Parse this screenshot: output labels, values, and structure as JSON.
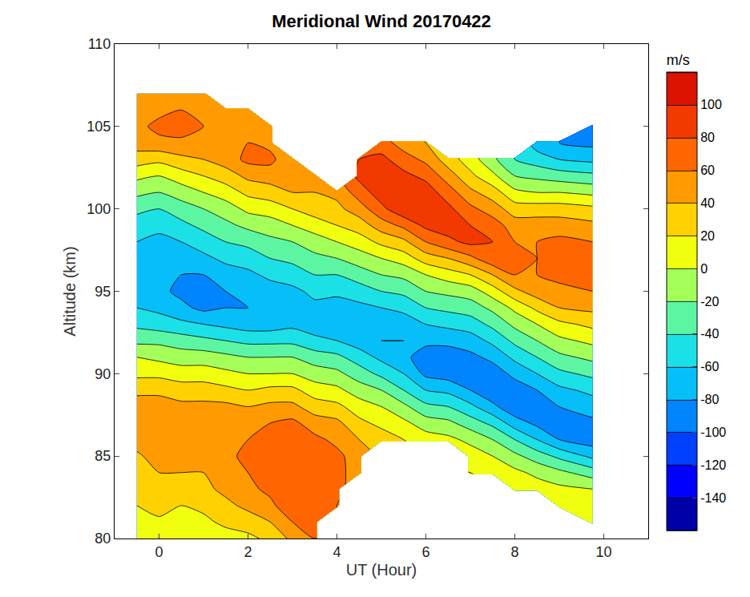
{
  "chart_data": {
    "type": "contour",
    "title": "Meridional Wind 20170422",
    "x_label": "UT (Hour)",
    "y_label": "Altitude (km)",
    "xlim": [
      -1,
      11
    ],
    "xticks": [
      0,
      2,
      4,
      6,
      8,
      10
    ],
    "ylim": [
      80,
      110
    ],
    "yticks": [
      80,
      85,
      90,
      95,
      100,
      105,
      110
    ],
    "colorbar": {
      "title": "m/s",
      "range": [
        -160,
        120
      ],
      "step": 20,
      "ticks": [
        -140,
        -120,
        -100,
        -80,
        -60,
        -40,
        -20,
        0,
        20,
        40,
        60,
        80,
        100
      ]
    },
    "x": [
      -0.5,
      0,
      0.5,
      1,
      1.5,
      2,
      2.5,
      3,
      3.5,
      4,
      4.5,
      5,
      5.5,
      6,
      6.5,
      7,
      7.5,
      8,
      8.5,
      9,
      9.75
    ],
    "y": [
      80,
      81,
      82,
      83,
      84,
      85,
      86,
      87,
      88,
      89,
      90,
      91,
      92,
      93,
      94,
      95,
      96,
      97,
      98,
      99,
      100,
      101,
      102,
      103,
      104,
      105,
      106,
      107
    ],
    "z": [
      [
        0,
        5,
        0,
        5,
        10,
        15,
        25,
        45,
        60,
        null,
        null,
        null,
        null,
        null,
        null,
        null,
        null,
        null,
        null,
        null,
        null
      ],
      [
        10,
        15,
        10,
        15,
        25,
        30,
        40,
        60,
        70,
        null,
        null,
        null,
        null,
        null,
        null,
        null,
        null,
        null,
        null,
        null,
        15
      ],
      [
        20,
        30,
        20,
        25,
        35,
        45,
        55,
        75,
        75,
        60,
        null,
        null,
        null,
        null,
        null,
        null,
        null,
        null,
        null,
        20,
        10
      ],
      [
        25,
        35,
        30,
        35,
        45,
        55,
        65,
        75,
        75,
        65,
        null,
        null,
        null,
        null,
        null,
        null,
        null,
        20,
        10,
        5,
        0
      ],
      [
        30,
        40,
        40,
        40,
        55,
        60,
        70,
        70,
        70,
        70,
        45,
        null,
        null,
        null,
        null,
        20,
        15,
        5,
        -5,
        -15,
        -30
      ],
      [
        38,
        45,
        50,
        45,
        55,
        65,
        70,
        70,
        70,
        65,
        50,
        null,
        null,
        null,
        null,
        10,
        0,
        -15,
        -30,
        -45,
        -65
      ],
      [
        45,
        55,
        55,
        50,
        60,
        60,
        65,
        75,
        65,
        55,
        40,
        30,
        20,
        10,
        5,
        -5,
        -20,
        -40,
        -60,
        -80,
        -90
      ],
      [
        55,
        60,
        55,
        50,
        55,
        55,
        60,
        65,
        50,
        45,
        25,
        15,
        5,
        -10,
        -15,
        -30,
        -45,
        -70,
        -85,
        -90,
        -85
      ],
      [
        50,
        50,
        45,
        45,
        45,
        40,
        45,
        45,
        30,
        25,
        10,
        0,
        -15,
        -35,
        -40,
        -55,
        -75,
        -95,
        -90,
        -80,
        -70
      ],
      [
        35,
        35,
        30,
        30,
        25,
        20,
        25,
        25,
        10,
        5,
        -10,
        -20,
        -40,
        -60,
        -65,
        -80,
        -95,
        -90,
        -80,
        -65,
        -55
      ],
      [
        15,
        15,
        10,
        10,
        5,
        0,
        0,
        0,
        -10,
        -15,
        -30,
        -45,
        -60,
        -85,
        -90,
        -95,
        -90,
        -75,
        -60,
        -45,
        -35
      ],
      [
        0,
        -5,
        -10,
        -10,
        -15,
        -20,
        -20,
        -20,
        -30,
        -35,
        -50,
        -65,
        -75,
        -90,
        -90,
        -85,
        -75,
        -55,
        -40,
        -25,
        -15
      ],
      [
        -25,
        -25,
        -30,
        -35,
        -40,
        -45,
        -45,
        -45,
        -55,
        -60,
        -70,
        -80,
        -80,
        -75,
        -75,
        -70,
        -55,
        -35,
        -20,
        -5,
        5
      ],
      [
        -45,
        -50,
        -55,
        -60,
        -65,
        -70,
        -70,
        -65,
        -70,
        -75,
        -75,
        -75,
        -70,
        -60,
        -55,
        -50,
        -35,
        -15,
        0,
        15,
        25
      ],
      [
        -60,
        -65,
        -75,
        -85,
        -80,
        -80,
        -75,
        -70,
        -65,
        -70,
        -65,
        -60,
        -55,
        -40,
        -35,
        -30,
        -15,
        5,
        25,
        40,
        45
      ],
      [
        -75,
        -75,
        -85,
        -90,
        -80,
        -75,
        -70,
        -65,
        -55,
        -55,
        -50,
        -40,
        -35,
        -20,
        -15,
        -10,
        10,
        35,
        50,
        55,
        60
      ],
      [
        -75,
        -75,
        -80,
        -80,
        -70,
        -65,
        -55,
        -50,
        -40,
        -40,
        -30,
        -20,
        -15,
        0,
        10,
        20,
        40,
        60,
        60,
        65,
        65
      ],
      [
        -70,
        -70,
        -70,
        -65,
        -55,
        -50,
        -40,
        -35,
        -25,
        -20,
        -10,
        0,
        10,
        30,
        40,
        55,
        75,
        65,
        60,
        65,
        65
      ],
      [
        -60,
        -65,
        -60,
        -50,
        -40,
        -35,
        -25,
        -20,
        -10,
        0,
        10,
        25,
        35,
        60,
        75,
        85,
        80,
        60,
        60,
        65,
        60
      ],
      [
        -50,
        -55,
        -45,
        -35,
        -25,
        -15,
        -10,
        0,
        10,
        20,
        30,
        50,
        65,
        85,
        90,
        80,
        70,
        50,
        50,
        50,
        45
      ],
      [
        -35,
        -40,
        -30,
        -20,
        -10,
        5,
        10,
        20,
        30,
        35,
        50,
        75,
        95,
        100,
        85,
        65,
        50,
        30,
        30,
        30,
        25
      ],
      [
        -15,
        -20,
        -10,
        0,
        10,
        25,
        30,
        40,
        40,
        45,
        70,
        90,
        95,
        90,
        70,
        45,
        30,
        5,
        0,
        0,
        -5
      ],
      [
        5,
        0,
        10,
        20,
        30,
        45,
        50,
        50,
        45,
        null,
        85,
        90,
        85,
        75,
        50,
        25,
        5,
        -20,
        -25,
        -30,
        -35
      ],
      [
        30,
        25,
        35,
        40,
        50,
        65,
        65,
        45,
        null,
        null,
        80,
        85,
        70,
        55,
        30,
        10,
        -15,
        -40,
        -50,
        -60,
        -65
      ],
      [
        50,
        55,
        55,
        55,
        60,
        60,
        55,
        null,
        null,
        null,
        null,
        70,
        50,
        40,
        null,
        null,
        null,
        null,
        -70,
        -80,
        -85
      ],
      [
        55,
        65,
        70,
        60,
        55,
        50,
        45,
        null,
        null,
        null,
        null,
        null,
        null,
        null,
        null,
        null,
        null,
        null,
        null,
        null,
        -90
      ],
      [
        50,
        55,
        60,
        50,
        45,
        40,
        null,
        null,
        null,
        null,
        null,
        null,
        null,
        null,
        null,
        null,
        null,
        null,
        null,
        null,
        null
      ],
      [
        40,
        45,
        45,
        40,
        null,
        null,
        null,
        null,
        null,
        null,
        null,
        null,
        null,
        null,
        null,
        null,
        null,
        null,
        null,
        null,
        null
      ]
    ]
  }
}
